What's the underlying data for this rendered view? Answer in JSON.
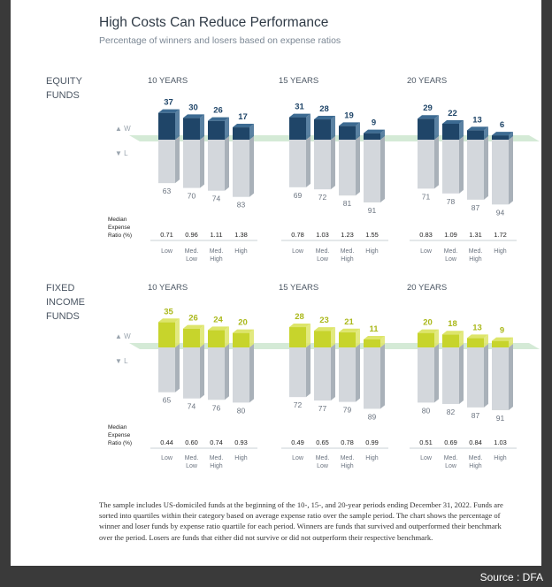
{
  "header": {
    "title": "High Costs Can Reduce Performance",
    "subtitle": "Percentage of winners and losers based on expense ratios"
  },
  "legend": {
    "winners_label": "W",
    "losers_label": "L"
  },
  "expense_ratio_label": [
    "Median",
    "Expense",
    "Ratio (%)"
  ],
  "quartile_labels": [
    [
      "Low"
    ],
    [
      "Med.",
      "Low"
    ],
    [
      "Med.",
      "High"
    ],
    [
      "High"
    ]
  ],
  "footnote": "The sample includes US-domiciled funds at the beginning of the 10-, 15-, and 20-year periods ending December 31, 2022. Funds are sorted into quartiles within their category based on average expense ratio over the sample period. The chart shows the percentage of winner and loser funds by expense ratio quartile for each period. Winners are funds that survived and outperformed their benchmark over the period. Losers are funds that either did not survive or did not outperform their respective benchmark.",
  "source": "Source : DFA",
  "colors": {
    "equity_winner": "#1f4568",
    "equity_winner_top": "#3d6b92",
    "fixed_winner": "#c7d42c",
    "fixed_winner_top": "#dde56a",
    "loser_front": "#d3d7dc",
    "loser_side": "#a9b1b9",
    "band": "#cfe8d2"
  },
  "chart_data": [
    {
      "type": "bar",
      "section_label": [
        "EQUITY",
        "FUNDS"
      ],
      "title": "Equity Funds",
      "categories": [
        "Low",
        "Med. Low",
        "Med. High",
        "High"
      ],
      "periods": [
        {
          "label": "10 YEARS",
          "winners": [
            37,
            30,
            26,
            17
          ],
          "losers": [
            63,
            70,
            74,
            83
          ],
          "expense_ratio": [
            "0.71",
            "0.96",
            "1.11",
            "1.38"
          ]
        },
        {
          "label": "15 YEARS",
          "winners": [
            31,
            28,
            19,
            9
          ],
          "losers": [
            69,
            72,
            81,
            91
          ],
          "expense_ratio": [
            "0.78",
            "1.03",
            "1.23",
            "1.55"
          ]
        },
        {
          "label": "20 YEARS",
          "winners": [
            29,
            22,
            13,
            6
          ],
          "losers": [
            71,
            78,
            87,
            94
          ],
          "expense_ratio": [
            "0.83",
            "1.09",
            "1.31",
            "1.72"
          ]
        }
      ]
    },
    {
      "type": "bar",
      "section_label": [
        "FIXED",
        "INCOME",
        "FUNDS"
      ],
      "title": "Fixed Income Funds",
      "categories": [
        "Low",
        "Med. Low",
        "Med. High",
        "High"
      ],
      "periods": [
        {
          "label": "10 YEARS",
          "winners": [
            35,
            26,
            24,
            20
          ],
          "losers": [
            65,
            74,
            76,
            80
          ],
          "expense_ratio": [
            "0.44",
            "0.60",
            "0.74",
            "0.93"
          ]
        },
        {
          "label": "15 YEARS",
          "winners": [
            28,
            23,
            21,
            11
          ],
          "losers": [
            72,
            77,
            79,
            89
          ],
          "expense_ratio": [
            "0.49",
            "0.65",
            "0.78",
            "0.99"
          ]
        },
        {
          "label": "20 YEARS",
          "winners": [
            20,
            18,
            13,
            9
          ],
          "losers": [
            80,
            82,
            87,
            91
          ],
          "expense_ratio": [
            "0.51",
            "0.69",
            "0.84",
            "1.03"
          ]
        }
      ]
    }
  ]
}
